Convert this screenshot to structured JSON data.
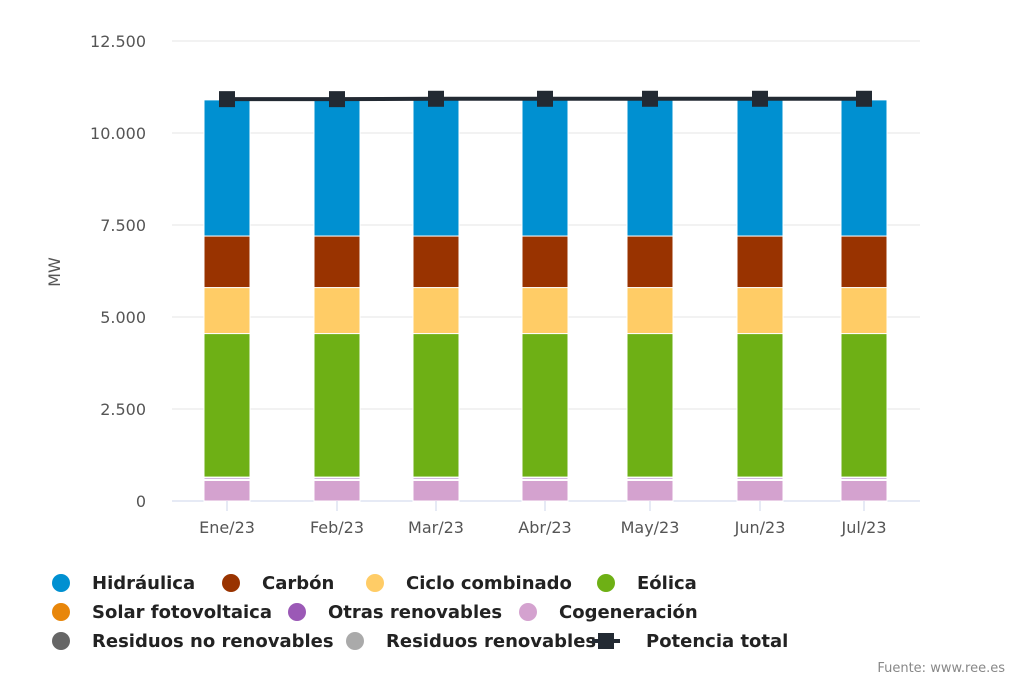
{
  "chart_data": {
    "type": "bar",
    "stacked": true,
    "ylabel": "MW",
    "xlabel": "",
    "ylim": [
      0,
      12500
    ],
    "y_ticks": [
      0,
      2500,
      5000,
      7500,
      10000,
      12500
    ],
    "y_tick_labels": [
      "0",
      "2.500",
      "5.000",
      "7.500",
      "10.000",
      "12.500"
    ],
    "categories": [
      "Ene/23",
      "Feb/23",
      "Mar/23",
      "Abr/23",
      "May/23",
      "Jun/23",
      "Jul/23"
    ],
    "series": [
      {
        "name": "Cogeneración",
        "color": "#d4a2cf",
        "values": [
          560,
          560,
          560,
          560,
          560,
          560,
          560
        ]
      },
      {
        "name": "Residuos no renovables",
        "color": "#666666",
        "values": [
          20,
          20,
          20,
          20,
          20,
          20,
          20
        ]
      },
      {
        "name": "Residuos renovables",
        "color": "#aaaaaa",
        "values": [
          20,
          20,
          20,
          20,
          20,
          20,
          20
        ]
      },
      {
        "name": "Otras renovables",
        "color": "#9b59b6",
        "values": [
          40,
          40,
          40,
          40,
          40,
          40,
          40
        ]
      },
      {
        "name": "Solar fotovoltaica",
        "color": "#e8860a",
        "values": [
          10,
          10,
          10,
          10,
          10,
          10,
          10
        ]
      },
      {
        "name": "Eólica",
        "color": "#6eb015",
        "values": [
          3900,
          3900,
          3900,
          3900,
          3900,
          3900,
          3900
        ]
      },
      {
        "name": "Ciclo combinado",
        "color": "#ffcc66",
        "values": [
          1250,
          1250,
          1250,
          1250,
          1250,
          1250,
          1250
        ]
      },
      {
        "name": "Carbón",
        "color": "#993300",
        "values": [
          1400,
          1400,
          1400,
          1400,
          1400,
          1400,
          1400
        ]
      },
      {
        "name": "Hidráulica",
        "color": "#0090d1",
        "values": [
          3700,
          3700,
          3700,
          3700,
          3700,
          3700,
          3700
        ]
      }
    ],
    "line_series": {
      "name": "Potencia total",
      "color": "#232a33",
      "values": [
        10920,
        10920,
        10930,
        10930,
        10930,
        10930,
        10930
      ]
    },
    "legend": [
      {
        "name": "Hidráulica",
        "color": "#0090d1",
        "marker": "circle"
      },
      {
        "name": "Carbón",
        "color": "#993300",
        "marker": "circle"
      },
      {
        "name": "Ciclo combinado",
        "color": "#ffcc66",
        "marker": "circle"
      },
      {
        "name": "Eólica",
        "color": "#6eb015",
        "marker": "circle"
      },
      {
        "name": "Solar fotovoltaica",
        "color": "#e8860a",
        "marker": "circle"
      },
      {
        "name": "Otras renovables",
        "color": "#9b59b6",
        "marker": "circle"
      },
      {
        "name": "Cogeneración",
        "color": "#d4a2cf",
        "marker": "circle"
      },
      {
        "name": "Residuos no renovables",
        "color": "#666666",
        "marker": "circle"
      },
      {
        "name": "Residuos renovables",
        "color": "#aaaaaa",
        "marker": "circle"
      },
      {
        "name": "Potencia total",
        "color": "#232a33",
        "marker": "line-square"
      }
    ],
    "legend_position": "bottom"
  },
  "source": "Fuente: www.ree.es"
}
